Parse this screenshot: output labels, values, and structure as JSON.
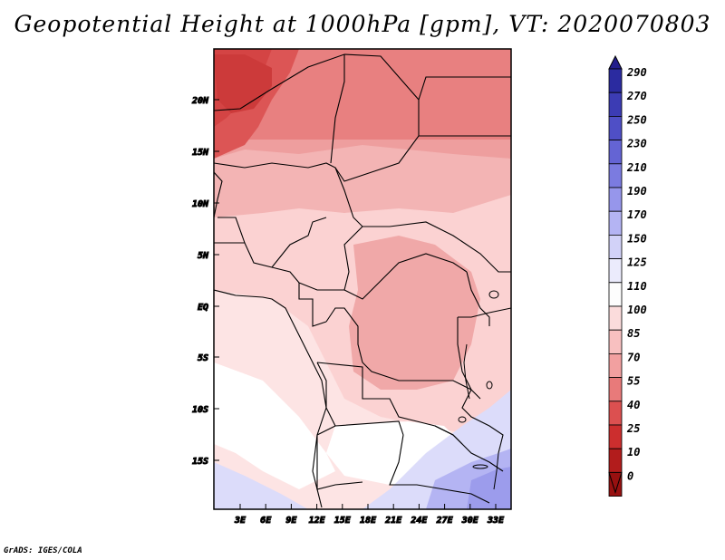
{
  "title": "Geopotential Height at 1000hPa [gpm], VT: 2020070803",
  "footer": "GrADS: IGES/COLA",
  "map": {
    "region": "Central and Southern Africa",
    "lat_labels": [
      "20N",
      "15N",
      "10N",
      "5N",
      "EQ",
      "5S",
      "10S",
      "15S"
    ],
    "lon_labels": [
      "3E",
      "6E",
      "9E",
      "12E",
      "15E",
      "18E",
      "21E",
      "24E",
      "27E",
      "30E",
      "33E"
    ]
  },
  "colorbar": {
    "labels": [
      "290",
      "270",
      "250",
      "230",
      "210",
      "190",
      "170",
      "150",
      "125",
      "110",
      "100",
      "85",
      "70",
      "55",
      "40",
      "25",
      "10",
      "0"
    ],
    "colors": [
      "#231e8c",
      "#2b2ba0",
      "#3c3cb4",
      "#4f4fc6",
      "#6464d4",
      "#7b7be0",
      "#9696eb",
      "#b4b4f3",
      "#d2d2f8",
      "#ebebfc",
      "#fdfdfd",
      "#fbdcdc",
      "#f8c0c0",
      "#f2a0a0",
      "#e87a7a",
      "#dc5050",
      "#cc2e2e",
      "#b21c1c",
      "#981010"
    ]
  }
}
